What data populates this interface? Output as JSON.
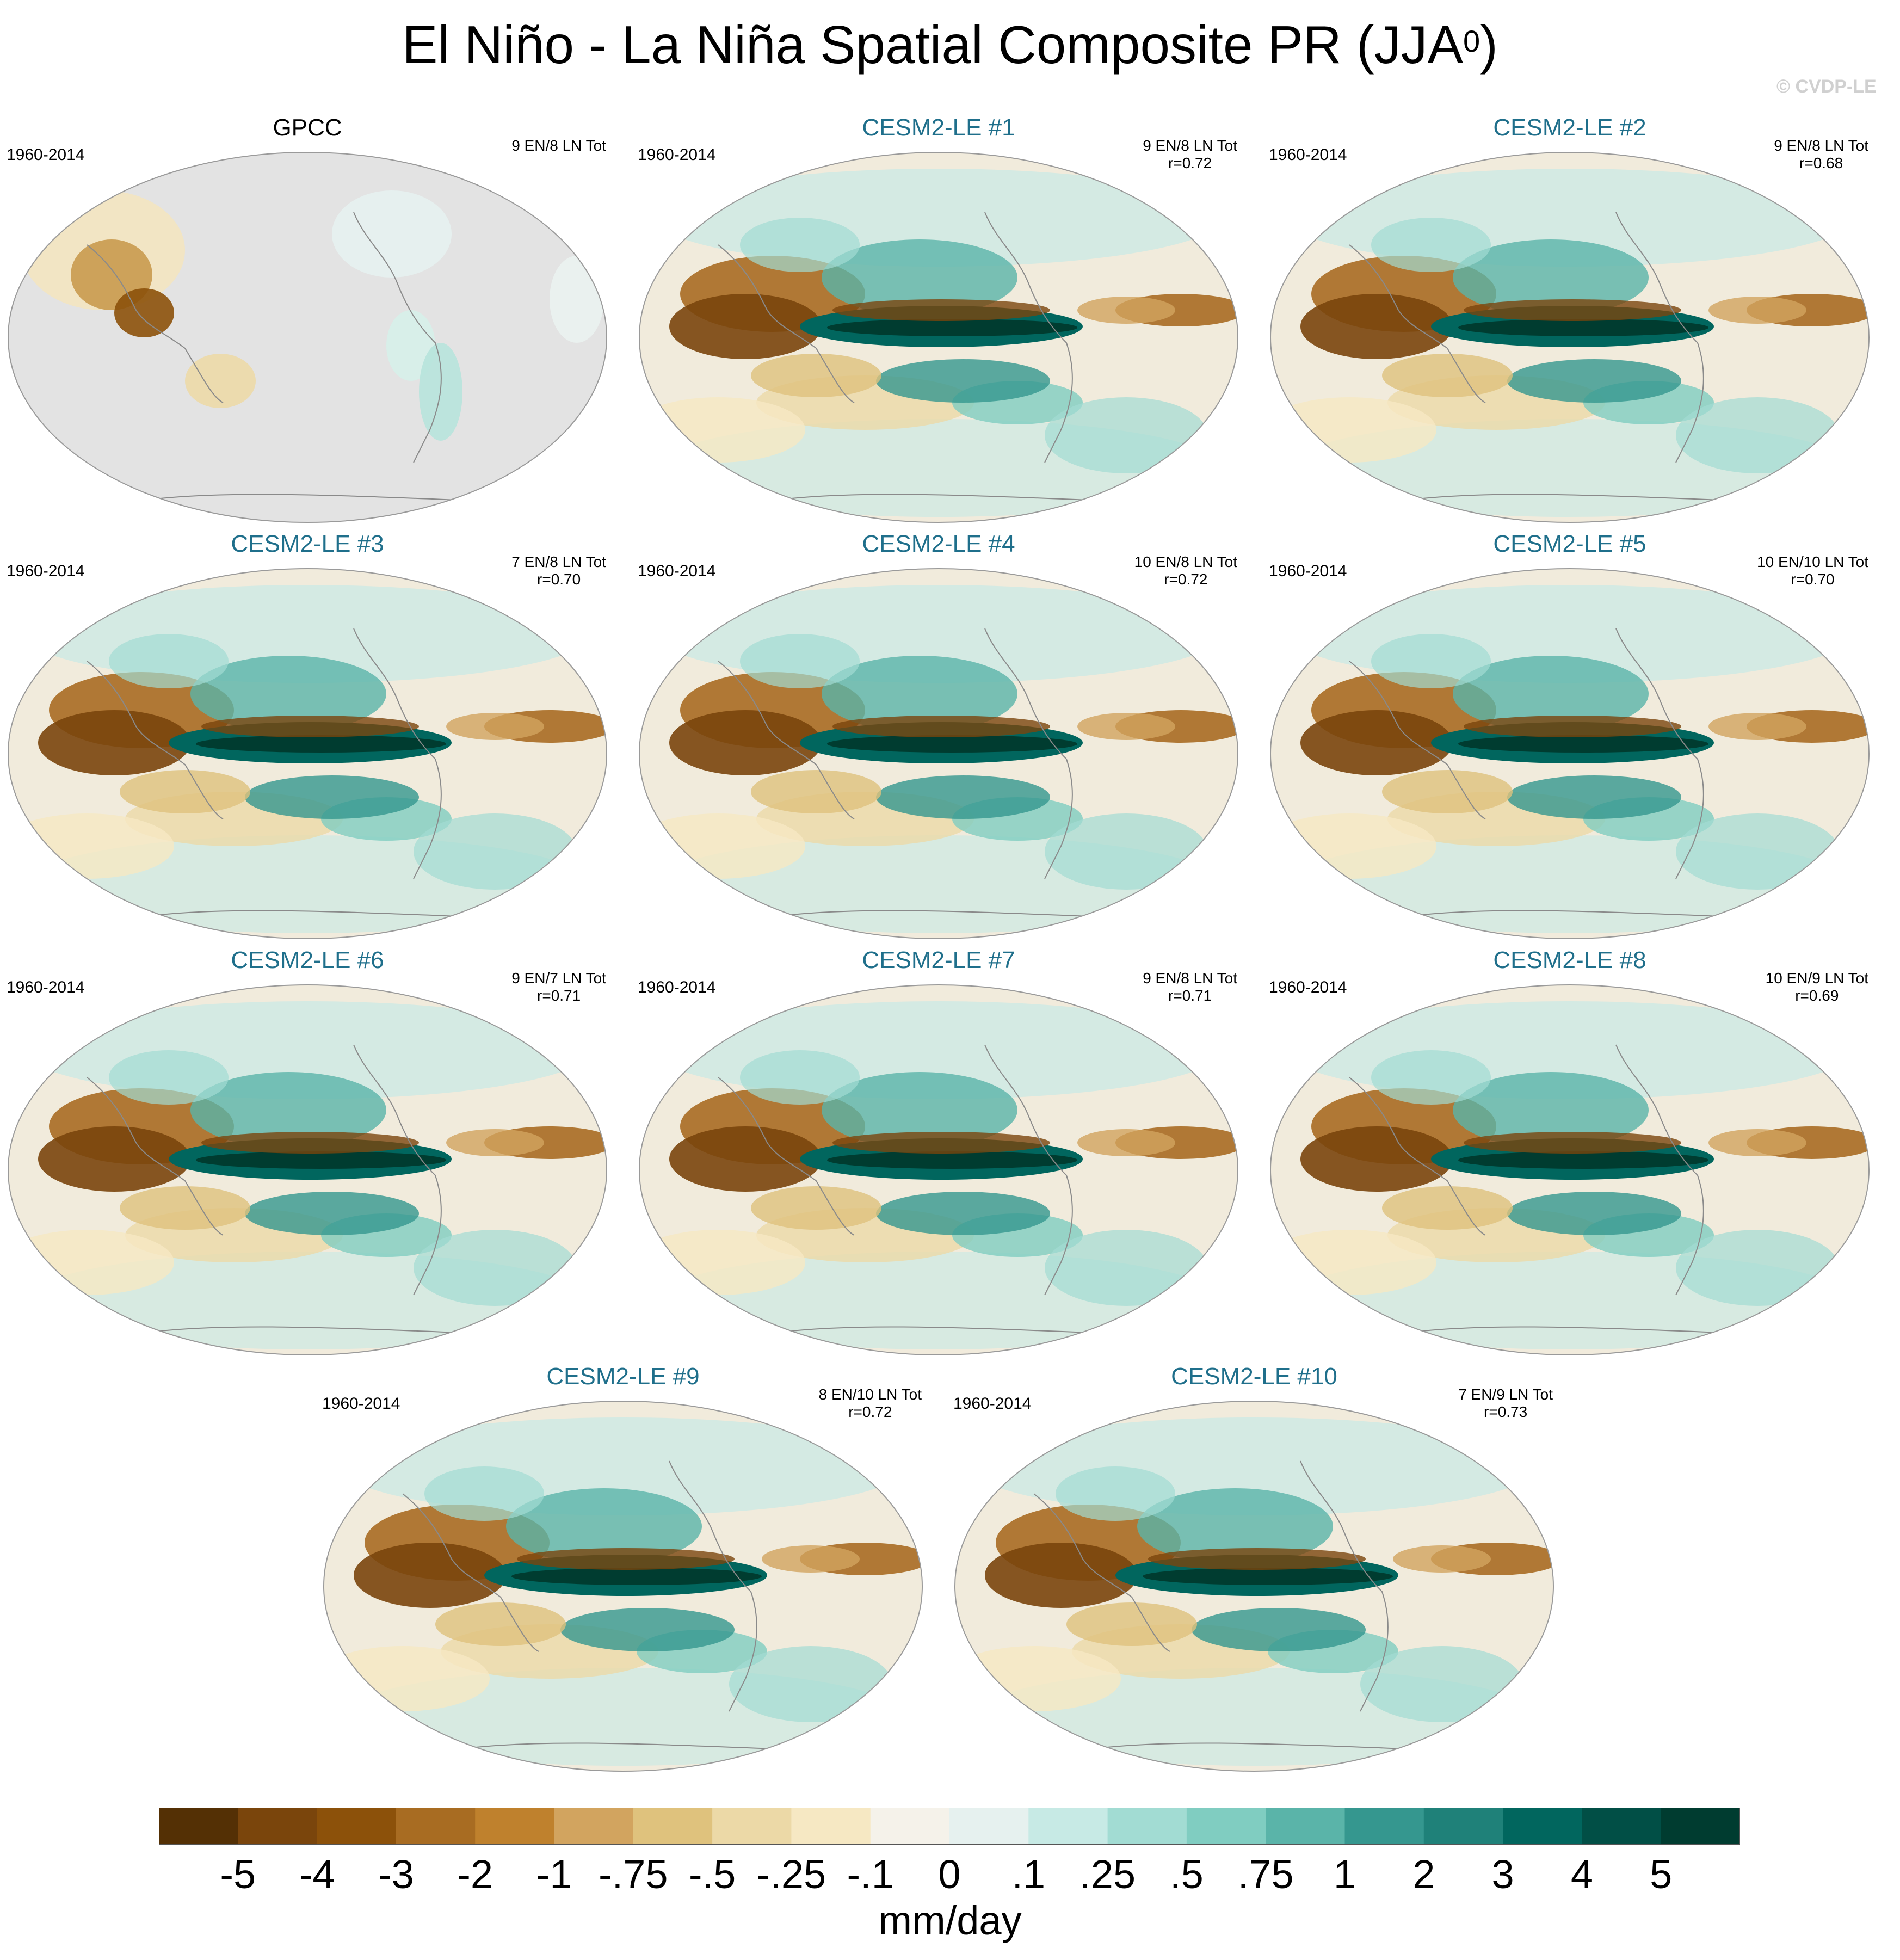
{
  "title_main": "El Niño - La Niña Spatial Composite PR (JJA",
  "title_sup": "0",
  "title_close": ")",
  "copyright": "© CVDP-LE",
  "panels": [
    {
      "title": "GPCC",
      "period": "1960-2014",
      "stats1": "9 EN/8 LN Tot",
      "stats2": "",
      "kind": "obs"
    },
    {
      "title": "CESM2-LE #1",
      "period": "1960-2014",
      "stats1": "9 EN/8 LN Tot",
      "stats2": "r=0.72",
      "kind": "model"
    },
    {
      "title": "CESM2-LE #2",
      "period": "1960-2014",
      "stats1": "9 EN/8 LN Tot",
      "stats2": "r=0.68",
      "kind": "model"
    },
    {
      "title": "CESM2-LE #3",
      "period": "1960-2014",
      "stats1": "7 EN/8 LN Tot",
      "stats2": "r=0.70",
      "kind": "model"
    },
    {
      "title": "CESM2-LE #4",
      "period": "1960-2014",
      "stats1": "10 EN/8 LN Tot",
      "stats2": "r=0.72",
      "kind": "model"
    },
    {
      "title": "CESM2-LE #5",
      "period": "1960-2014",
      "stats1": "10 EN/10 LN Tot",
      "stats2": "r=0.70",
      "kind": "model"
    },
    {
      "title": "CESM2-LE #6",
      "period": "1960-2014",
      "stats1": "9 EN/7 LN Tot",
      "stats2": "r=0.71",
      "kind": "model"
    },
    {
      "title": "CESM2-LE #7",
      "period": "1960-2014",
      "stats1": "9 EN/8 LN Tot",
      "stats2": "r=0.71",
      "kind": "model"
    },
    {
      "title": "CESM2-LE #8",
      "period": "1960-2014",
      "stats1": "10 EN/9 LN Tot",
      "stats2": "r=0.69",
      "kind": "model"
    },
    {
      "title": "CESM2-LE #9",
      "period": "1960-2014",
      "stats1": "8 EN/10 LN Tot",
      "stats2": "r=0.72",
      "kind": "model"
    },
    {
      "title": "CESM2-LE #10",
      "period": "1960-2014",
      "stats1": "7 EN/9 LN Tot",
      "stats2": "r=0.73",
      "kind": "model"
    }
  ],
  "colorbar": {
    "colors": [
      "#543005",
      "#7a450c",
      "#8c510a",
      "#a86c22",
      "#bf812d",
      "#d2a45f",
      "#dfc27d",
      "#ecd9a7",
      "#f6e8c3",
      "#f5f2ea",
      "#e6f1ef",
      "#c7eae5",
      "#a2dcd3",
      "#80cdc1",
      "#5ab4a9",
      "#35978f",
      "#1f8179",
      "#01665e",
      "#014f46",
      "#003c30"
    ],
    "labels": [
      "-5",
      "-4",
      "-3",
      "-2",
      "-1",
      "-.75",
      "-.5",
      "-.25",
      "-.1",
      "0",
      ".1",
      ".25",
      ".5",
      ".75",
      "1",
      "2",
      "3",
      "4",
      "5"
    ]
  },
  "units": "mm/day"
}
